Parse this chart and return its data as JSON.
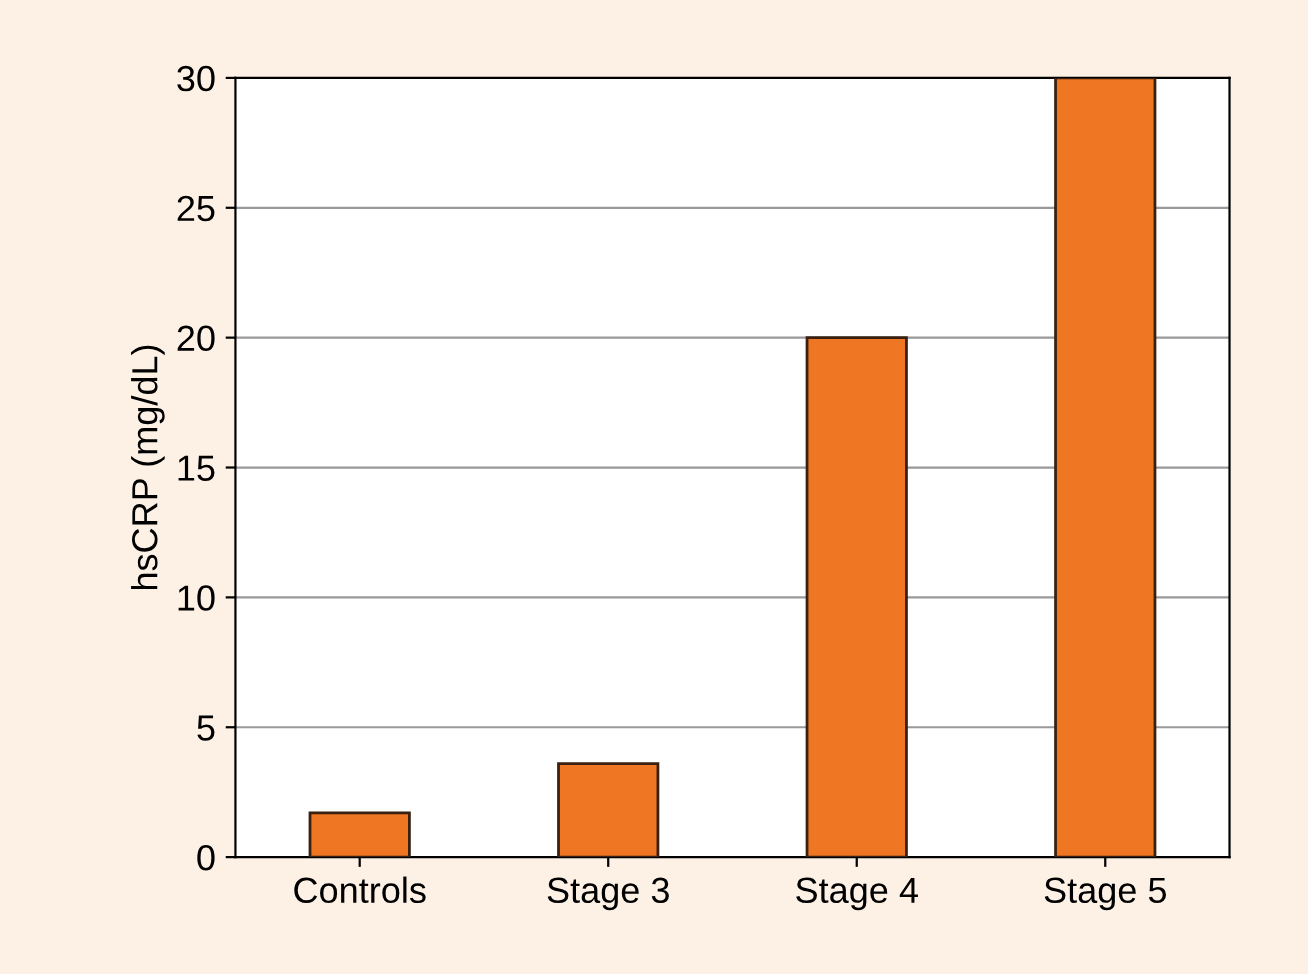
{
  "chart_data": {
    "type": "bar",
    "ylabel": "hsCRP (mg/dL)",
    "categories": [
      "Controls",
      "Stage 3",
      "Stage 4",
      "Stage 5"
    ],
    "values": [
      1.7,
      3.6,
      20,
      30
    ],
    "color": "#ef7622",
    "ylim": [
      0,
      30
    ],
    "yticks": [
      0,
      5,
      10,
      15,
      20,
      25,
      30
    ],
    "grid": "y"
  }
}
